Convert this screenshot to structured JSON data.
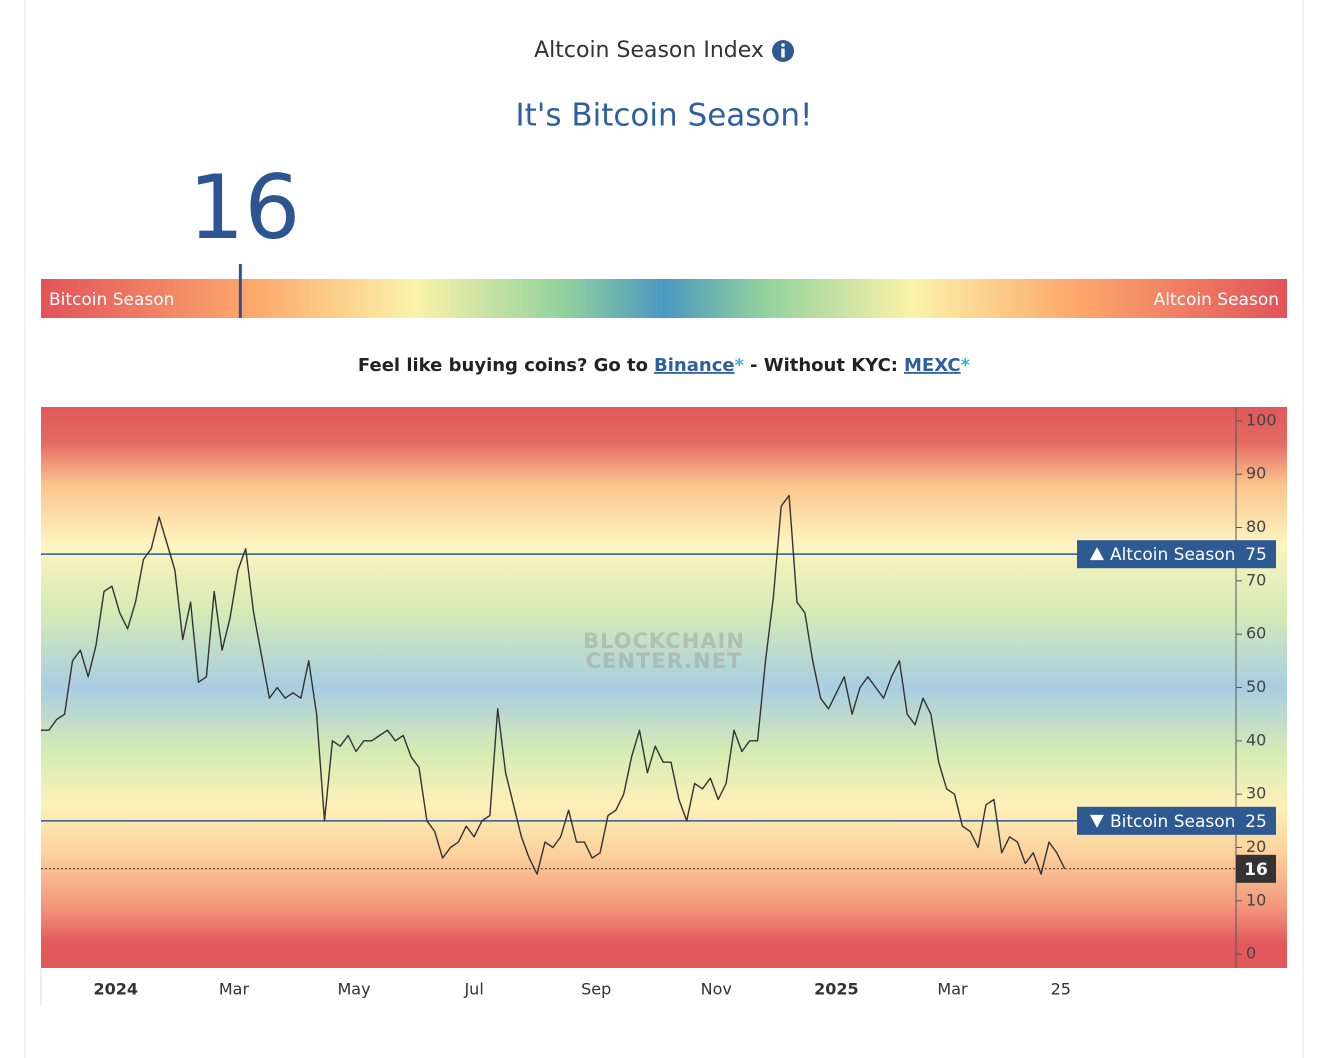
{
  "header": {
    "title": "Altcoin Season Index",
    "status": "It's Bitcoin Season!"
  },
  "gauge": {
    "value": 16,
    "lim": [
      0,
      100
    ],
    "left_label": "Bitcoin Season",
    "right_label": "Altcoin Season",
    "stops": [
      {
        "value": 0,
        "color": "#e2535a"
      },
      {
        "value": 17,
        "color": "#fda86c"
      },
      {
        "value": 30,
        "color": "#fbf3a9"
      },
      {
        "value": 42,
        "color": "#92d19e"
      },
      {
        "value": 50,
        "color": "#4a98c0"
      },
      {
        "value": 58,
        "color": "#92d19e"
      },
      {
        "value": 70,
        "color": "#fbf3a9"
      },
      {
        "value": 83,
        "color": "#fda86c"
      },
      {
        "value": 100,
        "color": "#e2535a"
      }
    ]
  },
  "promo": {
    "lead": "Feel like buying coins? Go to",
    "link1": "Binance",
    "star1": "*",
    "middle": "- Without KYC:",
    "link2": "MEXC",
    "star2": "*"
  },
  "chart_data": {
    "type": "line",
    "color": "#333333",
    "y_axis_side": "right",
    "xlim": [
      "2023-11-24",
      "2025-07-23"
    ],
    "ylim": [
      -2.6,
      102.6
    ],
    "yticks": [
      0,
      10,
      20,
      30,
      40,
      50,
      60,
      70,
      80,
      90,
      100
    ],
    "xticks": [
      {
        "value": "2024-01-01",
        "label": "2024",
        "bold": true
      },
      {
        "value": "2024-03-01",
        "label": "Mar"
      },
      {
        "value": "2024-05-01",
        "label": "May"
      },
      {
        "value": "2024-07-01",
        "label": "Jul"
      },
      {
        "value": "2024-09-01",
        "label": "Sep"
      },
      {
        "value": "2024-11-01",
        "label": "Nov"
      },
      {
        "value": "2025-01-01",
        "label": "2025",
        "bold": true
      },
      {
        "value": "2025-03-01",
        "label": "Mar"
      },
      {
        "value": "2025-04-25",
        "label": "25"
      }
    ],
    "x": [
      "2023-11-24",
      "2023-11-28",
      "2023-12-02",
      "2023-12-06",
      "2023-12-10",
      "2023-12-14",
      "2023-12-18",
      "2023-12-22",
      "2023-12-26",
      "2023-12-30",
      "2024-01-03",
      "2024-01-07",
      "2024-01-11",
      "2024-01-15",
      "2024-01-19",
      "2024-01-23",
      "2024-01-27",
      "2024-01-31",
      "2024-02-04",
      "2024-02-08",
      "2024-02-12",
      "2024-02-16",
      "2024-02-20",
      "2024-02-24",
      "2024-02-28",
      "2024-03-03",
      "2024-03-07",
      "2024-03-11",
      "2024-03-15",
      "2024-03-19",
      "2024-03-23",
      "2024-03-27",
      "2024-03-31",
      "2024-04-04",
      "2024-04-08",
      "2024-04-12",
      "2024-04-16",
      "2024-04-20",
      "2024-04-24",
      "2024-04-28",
      "2024-05-02",
      "2024-05-06",
      "2024-05-10",
      "2024-05-14",
      "2024-05-18",
      "2024-05-22",
      "2024-05-26",
      "2024-05-30",
      "2024-06-03",
      "2024-06-07",
      "2024-06-11",
      "2024-06-15",
      "2024-06-19",
      "2024-06-23",
      "2024-06-27",
      "2024-07-01",
      "2024-07-05",
      "2024-07-09",
      "2024-07-13",
      "2024-07-17",
      "2024-07-21",
      "2024-07-25",
      "2024-07-29",
      "2024-08-02",
      "2024-08-06",
      "2024-08-10",
      "2024-08-14",
      "2024-08-18",
      "2024-08-22",
      "2024-08-26",
      "2024-08-30",
      "2024-09-03",
      "2024-09-07",
      "2024-09-11",
      "2024-09-15",
      "2024-09-19",
      "2024-09-23",
      "2024-09-27",
      "2024-10-01",
      "2024-10-05",
      "2024-10-09",
      "2024-10-13",
      "2024-10-17",
      "2024-10-21",
      "2024-10-25",
      "2024-10-29",
      "2024-11-02",
      "2024-11-06",
      "2024-11-10",
      "2024-11-14",
      "2024-11-18",
      "2024-11-22",
      "2024-11-26",
      "2024-11-30",
      "2024-12-04",
      "2024-12-08",
      "2024-12-12",
      "2024-12-16",
      "2024-12-20",
      "2024-12-24",
      "2024-12-28",
      "2025-01-01",
      "2025-01-05",
      "2025-01-09",
      "2025-01-13",
      "2025-01-17",
      "2025-01-21",
      "2025-01-25",
      "2025-01-29",
      "2025-02-02",
      "2025-02-06",
      "2025-02-10",
      "2025-02-14",
      "2025-02-18",
      "2025-02-22",
      "2025-02-26",
      "2025-03-02",
      "2025-03-06",
      "2025-03-10",
      "2025-03-14",
      "2025-03-18",
      "2025-03-22",
      "2025-03-26",
      "2025-03-30",
      "2025-04-03",
      "2025-04-07",
      "2025-04-11",
      "2025-04-15",
      "2025-04-19",
      "2025-04-23",
      "2025-04-27"
    ],
    "values": [
      42,
      42,
      44,
      45,
      55,
      57,
      52,
      58,
      68,
      69,
      64,
      61,
      66,
      74,
      76,
      82,
      77,
      72,
      59,
      66,
      51,
      52,
      68,
      57,
      63,
      72,
      76,
      64,
      56,
      48,
      50,
      48,
      49,
      48,
      55,
      45,
      25,
      40,
      39,
      41,
      38,
      40,
      40,
      41,
      42,
      40,
      41,
      37,
      35,
      25,
      23,
      18,
      20,
      21,
      24,
      22,
      25,
      26,
      46,
      34,
      28,
      22,
      18,
      15,
      21,
      20,
      22,
      27,
      21,
      21,
      18,
      19,
      26,
      27,
      30,
      37,
      42,
      34,
      39,
      36,
      36,
      29,
      25,
      32,
      31,
      33,
      29,
      32,
      42,
      38,
      40,
      40,
      55,
      67,
      84,
      86,
      66,
      64,
      55,
      48,
      46,
      49,
      52,
      45,
      50,
      52,
      50,
      48,
      52,
      55,
      45,
      43,
      48,
      45,
      36,
      31,
      30,
      24,
      23,
      20,
      28,
      29,
      19,
      22,
      21,
      17,
      19,
      15,
      21,
      19,
      16
    ],
    "thresholds": [
      {
        "value": 75,
        "label": "Altcoin Season",
        "direction": "up"
      },
      {
        "value": 25,
        "label": "Bitcoin Season",
        "direction": "down"
      }
    ],
    "threshold_color": "#2e5a94",
    "current_value": 16,
    "watermark": [
      "BLOCKCHAIN",
      "CENTER.NET"
    ],
    "background_stops": [
      {
        "value": 102.6,
        "color": "#e0575c"
      },
      {
        "value": 96,
        "color": "#e36b63"
      },
      {
        "value": 88,
        "color": "#fbc48e"
      },
      {
        "value": 77,
        "color": "#fdf4c0"
      },
      {
        "value": 64,
        "color": "#d4ebb6"
      },
      {
        "value": 50,
        "color": "#a9cde2"
      },
      {
        "value": 38,
        "color": "#d5ebb4"
      },
      {
        "value": 28,
        "color": "#fdf1b9"
      },
      {
        "value": 19,
        "color": "#fcd29d"
      },
      {
        "value": 9,
        "color": "#f3977c"
      },
      {
        "value": 2,
        "color": "#e2595d"
      },
      {
        "value": -2.6,
        "color": "#e0575c"
      }
    ]
  }
}
